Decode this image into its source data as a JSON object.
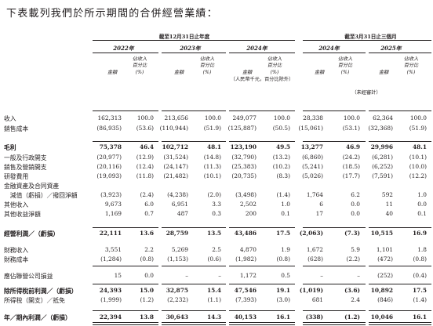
{
  "intro": "下表載列我們於所示期間的合併經營業績：",
  "headers": {
    "group1": "截至12月31日止年度",
    "group2": "截至3月31日止三個月",
    "years": [
      "2022年",
      "2023年",
      "2024年",
      "2024年",
      "2025年"
    ],
    "amount": "金額",
    "pct_label": [
      "佔收入",
      "百分比",
      "(%)"
    ],
    "unit_note": "（人民幣千元，百分比除外）",
    "unaudited": "（未經審計）"
  },
  "rows": [
    {
      "label": "收入",
      "bold": false,
      "values": [
        "162,313",
        "100.0",
        "213,656",
        "100.0",
        "249,077",
        "100.0",
        "28,338",
        "100.0",
        "62,364",
        "100.0"
      ]
    },
    {
      "label": "銷售成本",
      "bold": false,
      "values": [
        "(86,935)",
        "(53.6)",
        "(110,944)",
        "(51.9)",
        "(125,887)",
        "(50.5)",
        "(15,061)",
        "(53.1)",
        "(32,368)",
        "(51.9)"
      ]
    },
    {
      "label": "毛利",
      "bold": true,
      "values": [
        "75,378",
        "46.4",
        "102,712",
        "48.1",
        "123,190",
        "49.5",
        "13,277",
        "46.9",
        "29,996",
        "48.1"
      ]
    },
    {
      "label": "一般及行政開支",
      "bold": false,
      "values": [
        "(20,977)",
        "(12.9)",
        "(31,524)",
        "(14.8)",
        "(32,790)",
        "(13.2)",
        "(6,860)",
        "(24.2)",
        "(6,281)",
        "(10.1)"
      ]
    },
    {
      "label": "銷售及營銷開支",
      "bold": false,
      "values": [
        "(20,116)",
        "(12.4)",
        "(24,147)",
        "(11.3)",
        "(25,383)",
        "(10.2)",
        "(5,241)",
        "(18.5)",
        "(6,252)",
        "(10.0)"
      ]
    },
    {
      "label": "研發費用",
      "bold": false,
      "values": [
        "(19,093)",
        "(11.8)",
        "(21,482)",
        "(10.1)",
        "(20,735)",
        "(8.3)",
        "(5,026)",
        "(17.7)",
        "(7,591)",
        "(12.2)"
      ]
    },
    {
      "label": "金融資產及合同資產",
      "bold": false,
      "values": [
        "",
        "",
        "",
        "",
        "",
        "",
        "",
        "",
        "",
        ""
      ]
    },
    {
      "label": "　減值（虧損）／撥回淨額",
      "bold": false,
      "values": [
        "(3,923)",
        "(2.4)",
        "(4,238)",
        "(2.0)",
        "(3,498)",
        "(1.4)",
        "1,764",
        "6.2",
        "592",
        "1.0"
      ]
    },
    {
      "label": "其他收入",
      "bold": false,
      "values": [
        "9,673",
        "6.0",
        "6,951",
        "3.3",
        "2,502",
        "1.0",
        "6",
        "0.0",
        "11",
        "0.0"
      ]
    },
    {
      "label": "其他收益淨額",
      "bold": false,
      "values": [
        "1,169",
        "0.7",
        "487",
        "0.3",
        "200",
        "0.1",
        "17",
        "0.0",
        "40",
        "0.1"
      ]
    },
    {
      "label": "經營利潤／（虧損）",
      "bold": true,
      "values": [
        "22,111",
        "13.6",
        "28,759",
        "13.5",
        "43,486",
        "17.5",
        "(2,063)",
        "(7.3)",
        "10,515",
        "16.9"
      ]
    },
    {
      "label": "財務收入",
      "bold": false,
      "values": [
        "3,551",
        "2.2",
        "5,269",
        "2.5",
        "4,870",
        "1.9",
        "1,672",
        "5.9",
        "1,101",
        "1.8"
      ]
    },
    {
      "label": "財務成本",
      "bold": false,
      "values": [
        "(1,284)",
        "(0.8)",
        "(1,153)",
        "(0.6)",
        "(1,982)",
        "(0.8)",
        "(628)",
        "(2.2)",
        "(472)",
        "(0.8)"
      ]
    },
    {
      "label": "應佔聯營公司損益",
      "bold": false,
      "values": [
        "15",
        "0.0",
        "–",
        "–",
        "1,172",
        "0.5",
        "–",
        "–",
        "(252)",
        "(0.4)"
      ]
    },
    {
      "label": "除所得稅前利潤／（虧損）",
      "bold": true,
      "values": [
        "24,393",
        "15.0",
        "32,875",
        "15.4",
        "47,546",
        "19.1",
        "(1,019)",
        "(3.6)",
        "10,892",
        "17.5"
      ]
    },
    {
      "label": "所得稅（開支）／抵免",
      "bold": false,
      "values": [
        "(1,999)",
        "(1.2)",
        "(2,232)",
        "(1.1)",
        "(7,393)",
        "(3.0)",
        "681",
        "2.4",
        "(846)",
        "(1.4)"
      ]
    },
    {
      "label": "年／期內利潤／（虧損）",
      "bold": true,
      "values": [
        "22,394",
        "13.8",
        "30,643",
        "14.3",
        "40,153",
        "16.1",
        "(338)",
        "(1.2)",
        "10,046",
        "16.1"
      ]
    }
  ]
}
